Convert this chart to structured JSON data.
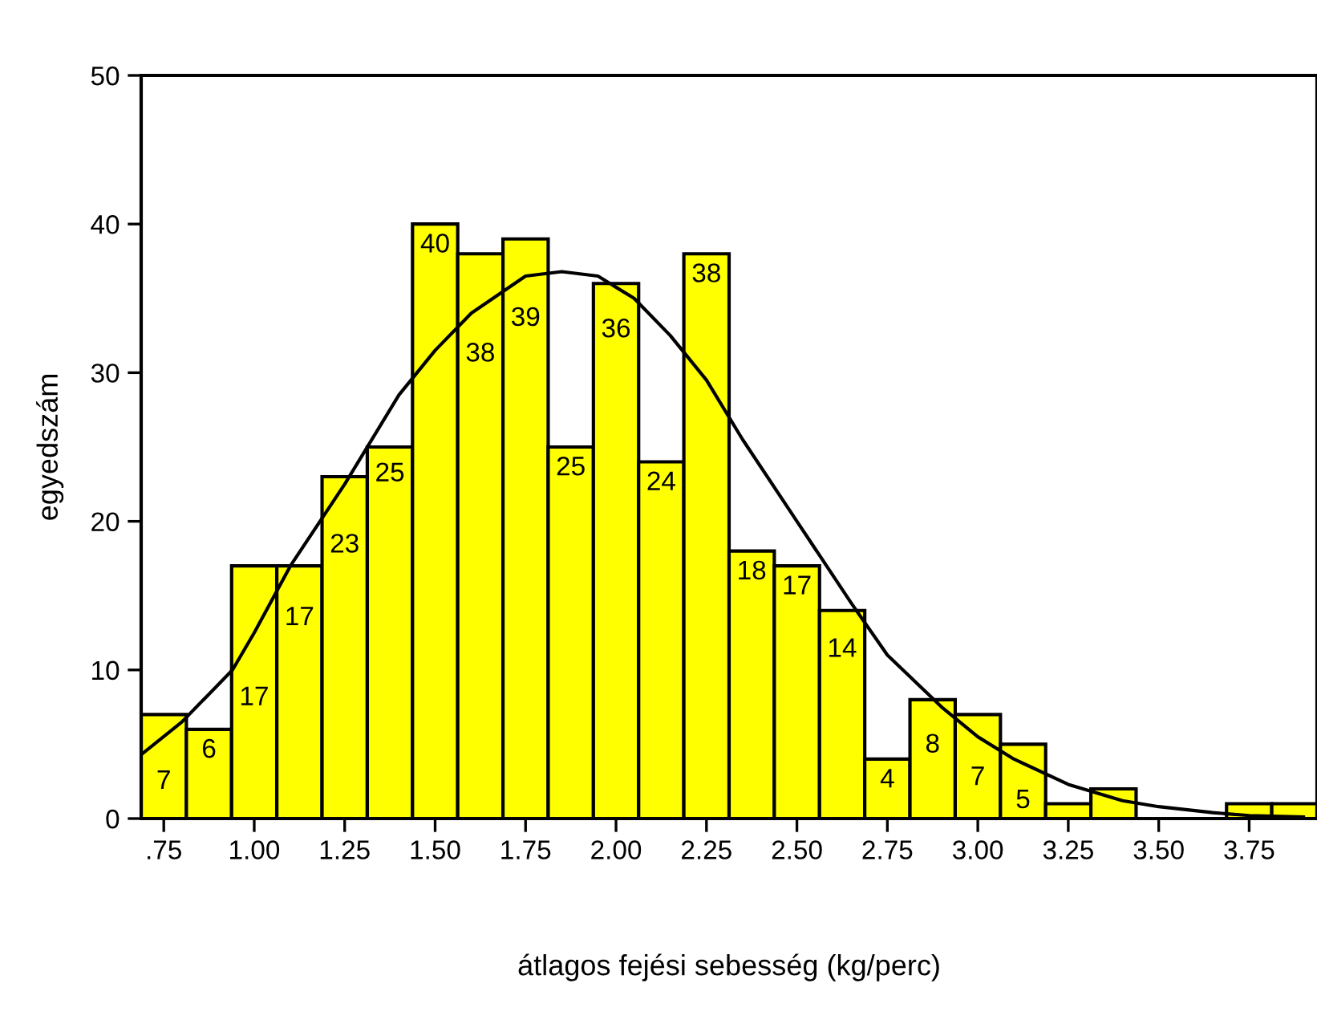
{
  "chart_data": {
    "type": "histogram",
    "xlabel": "átlagos fejési sebesség (kg/perc)",
    "ylabel": "egyedszám",
    "bins": [
      0.6875,
      0.8125,
      0.9375,
      1.0625,
      1.1875,
      1.3125,
      1.4375,
      1.5625,
      1.6875,
      1.8125,
      1.9375,
      2.0625,
      2.1875,
      2.3125,
      2.4375,
      2.5625,
      2.6875,
      2.8125,
      2.9375,
      3.0625,
      3.1875,
      3.3125,
      3.4375,
      3.5625,
      3.6875,
      3.8125,
      3.9375
    ],
    "values": [
      7,
      6,
      17,
      17,
      23,
      25,
      40,
      38,
      39,
      25,
      36,
      24,
      38,
      18,
      17,
      14,
      4,
      8,
      7,
      5,
      1,
      2,
      0,
      0,
      1,
      1
    ],
    "value_labels": [
      "7",
      "6",
      "17",
      "17",
      "23",
      "25",
      "40",
      "38",
      "39",
      "25",
      "36",
      "24",
      "38",
      "18",
      "17",
      "14",
      "4",
      "8",
      "7",
      "5",
      null,
      null,
      null,
      null,
      null,
      null
    ],
    "color": "#ffff00",
    "series": [
      {
        "type": "line",
        "color": "#000000",
        "x": [
          0.6875,
          0.8,
          0.94,
          1.0,
          1.1,
          1.25,
          1.4,
          1.5,
          1.6,
          1.75,
          1.85,
          1.95,
          2.05,
          2.15,
          2.25,
          2.35,
          2.5,
          2.65,
          2.75,
          2.9,
          3.0,
          3.1,
          3.25,
          3.4,
          3.5,
          3.65,
          3.75,
          3.9
        ],
        "values": [
          4.3,
          6.5,
          10,
          12.5,
          17,
          22.5,
          28.5,
          31.5,
          34,
          36.5,
          36.8,
          36.5,
          35,
          32.5,
          29.5,
          25.5,
          20,
          14.5,
          11,
          7.5,
          5.5,
          4,
          2.3,
          1.2,
          0.8,
          0.4,
          0.2,
          0.1
        ]
      }
    ],
    "xlim": [
      0.6875,
      3.9375
    ],
    "ylim": [
      0,
      50
    ],
    "xticks": [
      {
        "value": 0.75,
        "label": ".75"
      },
      {
        "value": 1.0,
        "label": "1.00"
      },
      {
        "value": 1.25,
        "label": "1.25"
      },
      {
        "value": 1.5,
        "label": "1.50"
      },
      {
        "value": 1.75,
        "label": "1.75"
      },
      {
        "value": 2.0,
        "label": "2.00"
      },
      {
        "value": 2.25,
        "label": "2.25"
      },
      {
        "value": 2.5,
        "label": "2.50"
      },
      {
        "value": 2.75,
        "label": "2.75"
      },
      {
        "value": 3.0,
        "label": "3.00"
      },
      {
        "value": 3.25,
        "label": "3.25"
      },
      {
        "value": 3.5,
        "label": "3.50"
      },
      {
        "value": 3.75,
        "label": "3.75"
      }
    ],
    "yticks": [
      0,
      10,
      20,
      30,
      40,
      50
    ],
    "grid": false,
    "legend": false,
    "marker": "none"
  }
}
